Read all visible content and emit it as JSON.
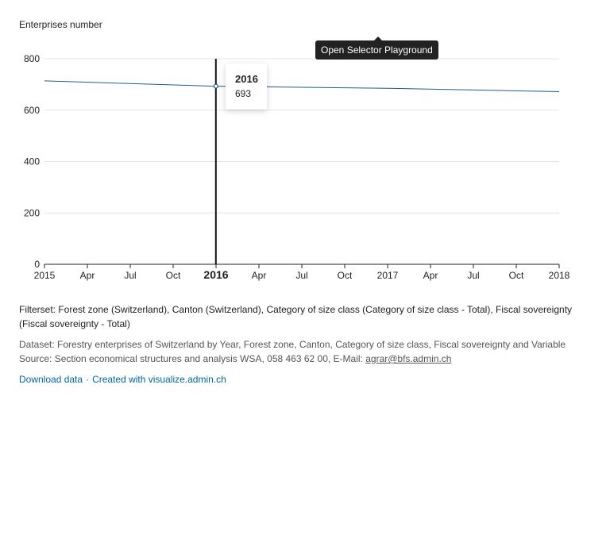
{
  "chart_data": {
    "type": "line",
    "ylabel": "Enterprises number",
    "ylim": [
      0,
      800
    ],
    "y_ticks": [
      "0",
      "200",
      "400",
      "600",
      "800"
    ],
    "x_ticks": [
      "2015",
      "Apr",
      "Jul",
      "Oct",
      "2016",
      "Apr",
      "Jul",
      "Oct",
      "2017",
      "Apr",
      "Jul",
      "Oct",
      "2018"
    ],
    "x_highlight_tick": "2016",
    "xlim": [
      "2015-01-01",
      "2018-01-01"
    ],
    "series": [
      {
        "x": [
          "2015-01-01",
          "2016-01-01",
          "2017-01-01",
          "2018-01-01"
        ],
        "values": [
          714,
          693,
          685,
          672
        ],
        "color": "#1f5c99"
      }
    ],
    "grid": true
  },
  "tooltip": {
    "year": "2016",
    "value": "693"
  },
  "selector_label": "Open Selector Playground",
  "filterset": "Filterset: Forest zone (Switzerland), Canton (Switzerland), Category of size class (Category of size class - Total), Fiscal sovereignty (Fiscal sovereignty - Total)",
  "dataset": "Dataset: Forestry enterprises of Switzerland by Year, Forest zone, Canton, Category of size class, Fiscal sovereignty and Variable",
  "source_prefix": "Source: Section economical structures and analysis WSA, 058 463 62 00, E-Mail: ",
  "source_email": "agrar@bfs.admin.ch",
  "links": {
    "download": "Download data",
    "separator": "·",
    "created_with": "Created with visualize.admin.ch"
  },
  "colors": {
    "line": "#1f5c99",
    "link": "#006699",
    "grid": "#e5e5e5"
  }
}
